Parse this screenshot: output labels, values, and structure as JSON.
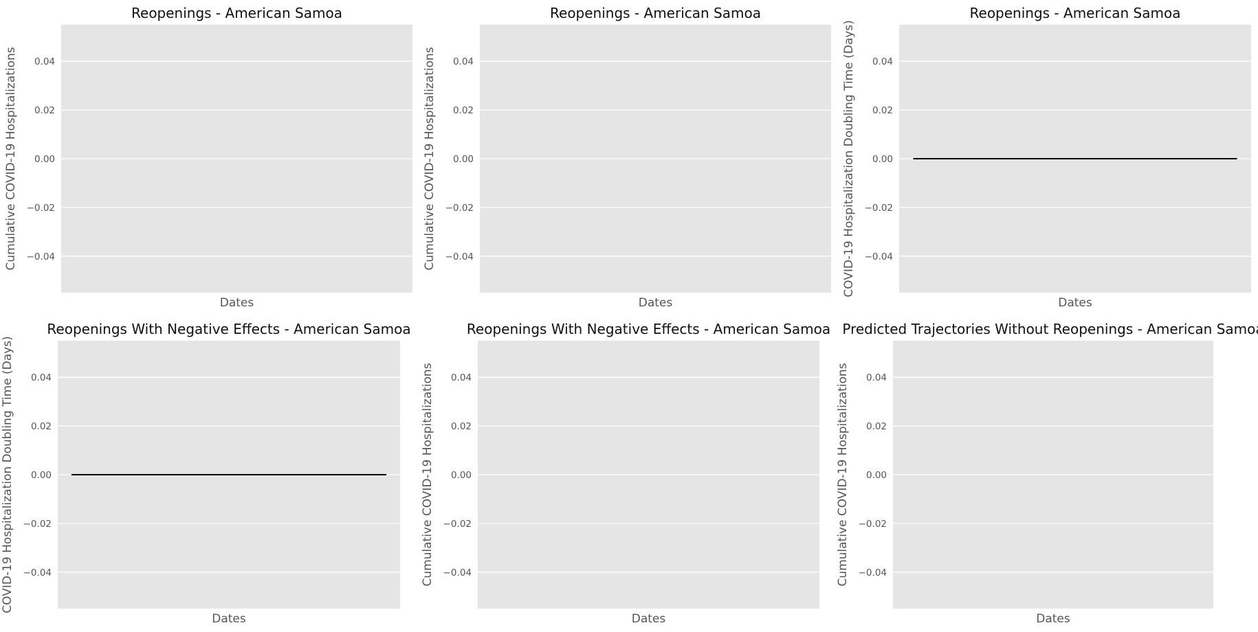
{
  "chart_data": [
    {
      "type": "line",
      "title": "Reopenings - American Samoa",
      "xlabel": "Dates",
      "ylabel": "Cumulative COVID-19 Hospitalizations",
      "ylim": [
        -0.055,
        0.055
      ],
      "yticks": [
        -0.04,
        -0.02,
        0.0,
        0.02,
        0.04
      ],
      "ytick_labels": [
        "−0.04",
        "−0.02",
        "0.00",
        "0.02",
        "0.04"
      ],
      "grid": true,
      "series": []
    },
    {
      "type": "line",
      "title": "Reopenings - American Samoa",
      "xlabel": "Dates",
      "ylabel": "Cumulative COVID-19 Hospitalizations",
      "ylim": [
        -0.055,
        0.055
      ],
      "yticks": [
        -0.04,
        -0.02,
        0.0,
        0.02,
        0.04
      ],
      "ytick_labels": [
        "−0.04",
        "−0.02",
        "0.00",
        "0.02",
        "0.04"
      ],
      "grid": true,
      "series": []
    },
    {
      "type": "line",
      "title": "Reopenings - American Samoa",
      "xlabel": "Dates",
      "ylabel": "COVID-19 Hospitalization Doubling Time (Days)",
      "ylim": [
        -0.055,
        0.055
      ],
      "yticks": [
        -0.04,
        -0.02,
        0.0,
        0.02,
        0.04
      ],
      "ytick_labels": [
        "−0.04",
        "−0.02",
        "0.00",
        "0.02",
        "0.04"
      ],
      "grid": true,
      "series": [
        {
          "color": "#000000",
          "y": [
            0,
            0
          ]
        }
      ]
    },
    {
      "type": "line",
      "title": "Reopenings With Negative Effects - American Samoa",
      "xlabel": "Dates",
      "ylabel": "COVID-19 Hospitalization Doubling Time (Days)",
      "ylim": [
        -0.055,
        0.055
      ],
      "yticks": [
        -0.04,
        -0.02,
        0.0,
        0.02,
        0.04
      ],
      "ytick_labels": [
        "−0.04",
        "−0.02",
        "0.00",
        "0.02",
        "0.04"
      ],
      "grid": true,
      "series": [
        {
          "color": "#000000",
          "y": [
            0,
            0
          ]
        }
      ]
    },
    {
      "type": "line",
      "title": "Reopenings With Negative Effects - American Samoa",
      "xlabel": "Dates",
      "ylabel": "Cumulative COVID-19 Hospitalizations",
      "ylim": [
        -0.055,
        0.055
      ],
      "yticks": [
        -0.04,
        -0.02,
        0.0,
        0.02,
        0.04
      ],
      "ytick_labels": [
        "−0.04",
        "−0.02",
        "0.00",
        "0.02",
        "0.04"
      ],
      "grid": true,
      "series": []
    },
    {
      "type": "line",
      "title": "Predicted Trajectories Without Reopenings - American Samoa",
      "xlabel": "Dates",
      "ylabel": "Cumulative COVID-19 Hospitalizations",
      "ylim": [
        -0.055,
        0.055
      ],
      "yticks": [
        -0.04,
        -0.02,
        0.0,
        0.02,
        0.04
      ],
      "ytick_labels": [
        "−0.04",
        "−0.02",
        "0.00",
        "0.02",
        "0.04"
      ],
      "grid": true,
      "series": []
    }
  ]
}
